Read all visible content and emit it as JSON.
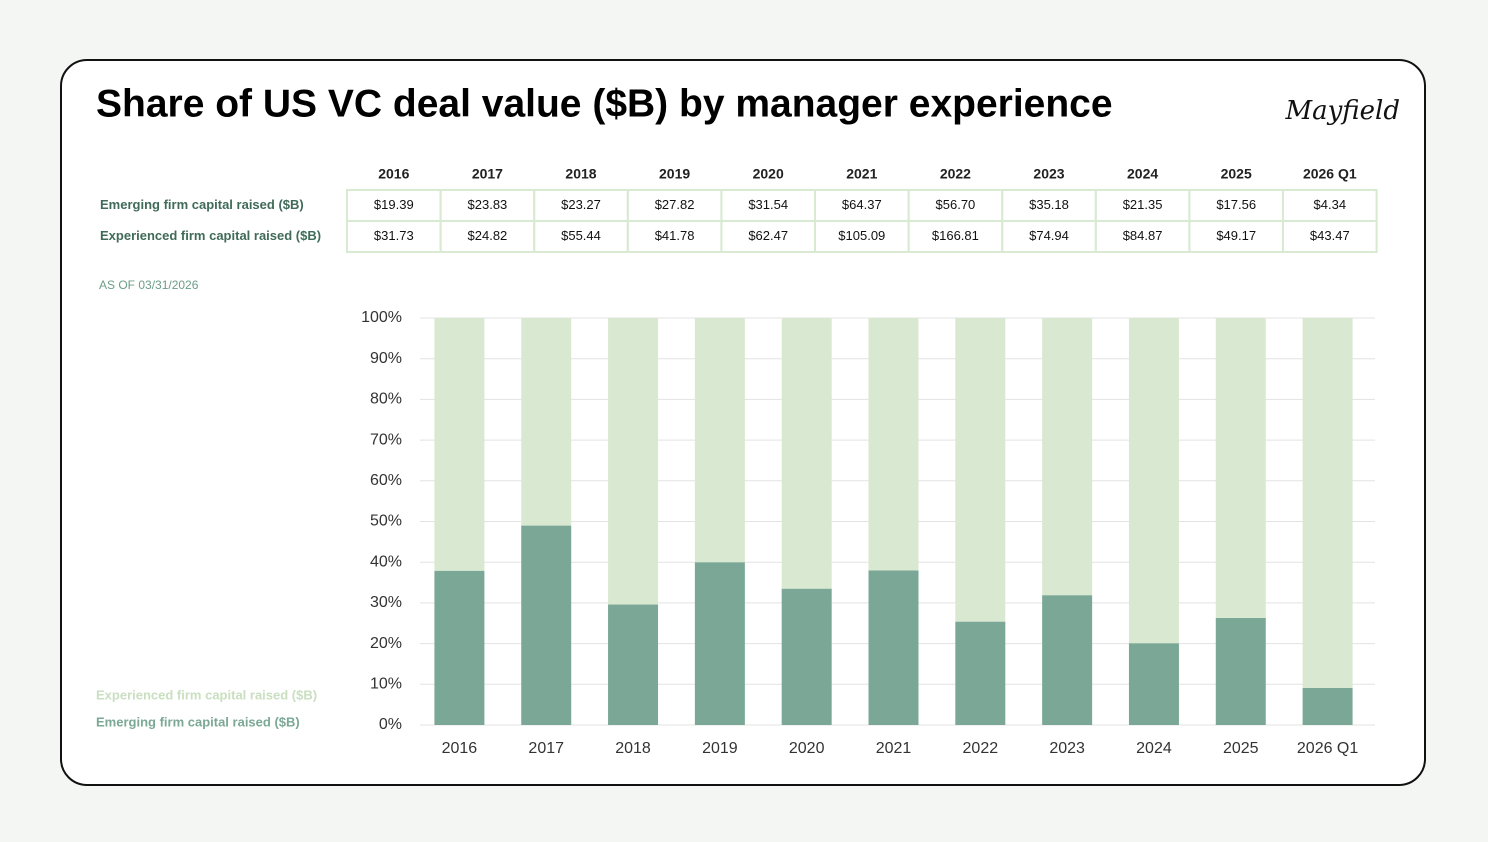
{
  "title": "Share of US VC deal value ($B) by manager experience",
  "logo": "Mayfield",
  "table": {
    "columns": [
      "2016",
      "2017",
      "2018",
      "2019",
      "2020",
      "2021",
      "2022",
      "2023",
      "2024",
      "2025",
      "2026 Q1"
    ],
    "rows": [
      {
        "label": "Emerging firm capital raised ($B)",
        "cells": [
          "$19.39",
          "$23.83",
          "$23.27",
          "$27.82",
          "$31.54",
          "$64.37",
          "$56.70",
          "$35.18",
          "$21.35",
          "$17.56",
          "$4.34"
        ]
      },
      {
        "label": "Experienced firm capital raised ($B)",
        "cells": [
          "$31.73",
          "$24.82",
          "$55.44",
          "$41.78",
          "$62.47",
          "$105.09",
          "$166.81",
          "$74.94",
          "$84.87",
          "$49.17",
          "$43.47"
        ]
      }
    ]
  },
  "note": "AS OF 03/31/2026",
  "chart_data": {
    "type": "stacked_bar",
    "categories": [
      "2016",
      "2017",
      "2018",
      "2019",
      "2020",
      "2021",
      "2022",
      "2023",
      "2024",
      "2025",
      "2026 Q1"
    ],
    "series": [
      {
        "name": "Emerging firm capital raised ($B)",
        "color": "#7ba896",
        "values": [
          37.9,
          49.0,
          29.6,
          40.0,
          33.5,
          38.0,
          25.4,
          31.9,
          20.1,
          26.3,
          9.1
        ]
      },
      {
        "name": "Experienced firm capital raised ($B)",
        "color": "#d9e9d1",
        "values": [
          62.1,
          51.0,
          70.4,
          60.0,
          66.5,
          62.0,
          74.6,
          68.1,
          79.9,
          73.7,
          90.9
        ]
      }
    ],
    "ylim": [
      0,
      100
    ],
    "yticks": [
      {
        "value": 0,
        "label": "0%"
      },
      {
        "value": 10,
        "label": "10%"
      },
      {
        "value": 20,
        "label": "20%"
      },
      {
        "value": 30,
        "label": "30%"
      },
      {
        "value": 40,
        "label": "40%"
      },
      {
        "value": 50,
        "label": "50%"
      },
      {
        "value": 60,
        "label": "60%"
      },
      {
        "value": 70,
        "label": "70%"
      },
      {
        "value": 80,
        "label": "80%"
      },
      {
        "value": 90,
        "label": "90%"
      },
      {
        "value": 100,
        "label": "100%"
      }
    ],
    "grid": true,
    "legend": "bottom-left"
  }
}
